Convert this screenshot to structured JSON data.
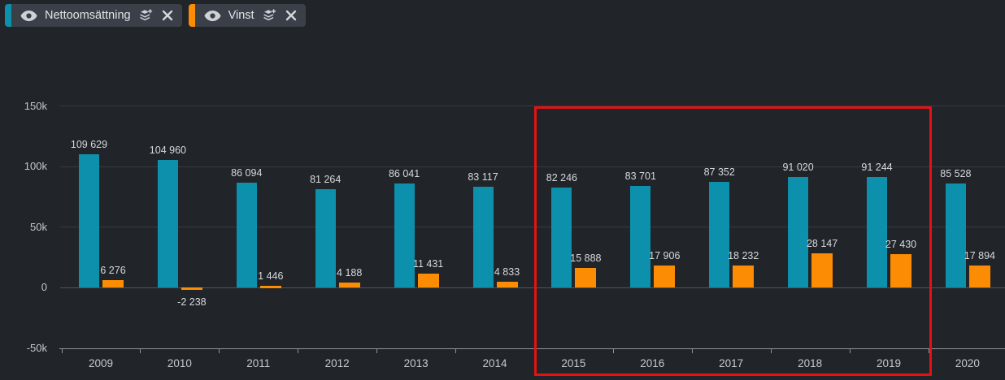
{
  "legend": {
    "chips": [
      {
        "label": "Nettoomsättning",
        "color": "#0d90ac"
      },
      {
        "label": "Vinst",
        "color": "#fb8c04"
      }
    ]
  },
  "chart_data": {
    "type": "bar",
    "categories": [
      "2009",
      "2010",
      "2011",
      "2012",
      "2013",
      "2014",
      "2015",
      "2016",
      "2017",
      "2018",
      "2019",
      "2020"
    ],
    "series": [
      {
        "name": "Nettoomsättning",
        "color": "#0d90ac",
        "values": [
          109629,
          104960,
          86094,
          81264,
          86041,
          83117,
          82246,
          83701,
          87352,
          91020,
          91244,
          85528
        ],
        "labels": [
          "109 629",
          "104 960",
          "86 094",
          "81 264",
          "86 041",
          "83 117",
          "82 246",
          "83 701",
          "87 352",
          "91 020",
          "91 244",
          "85 528"
        ]
      },
      {
        "name": "Vinst",
        "color": "#fb8c04",
        "values": [
          6276,
          -2238,
          1446,
          4188,
          11431,
          4833,
          15888,
          17906,
          18232,
          28147,
          27430,
          17894
        ],
        "labels": [
          "6 276",
          "-2 238",
          "1 446",
          "4 188",
          "11 431",
          "4 833",
          "15 888",
          "17 906",
          "18 232",
          "28 147",
          "27 430",
          "17 894"
        ]
      }
    ],
    "y_axis": {
      "min": -50000,
      "max": 150000,
      "ticks": [
        {
          "value": 150000,
          "label": "150k"
        },
        {
          "value": 100000,
          "label": "100k"
        },
        {
          "value": 50000,
          "label": "50k"
        },
        {
          "value": 0,
          "label": "0"
        },
        {
          "value": -50000,
          "label": "-50k"
        }
      ]
    },
    "grid": true,
    "legend_position": "top-left",
    "highlight": {
      "from": "2015",
      "to": "2019",
      "color": "#e41212"
    }
  }
}
